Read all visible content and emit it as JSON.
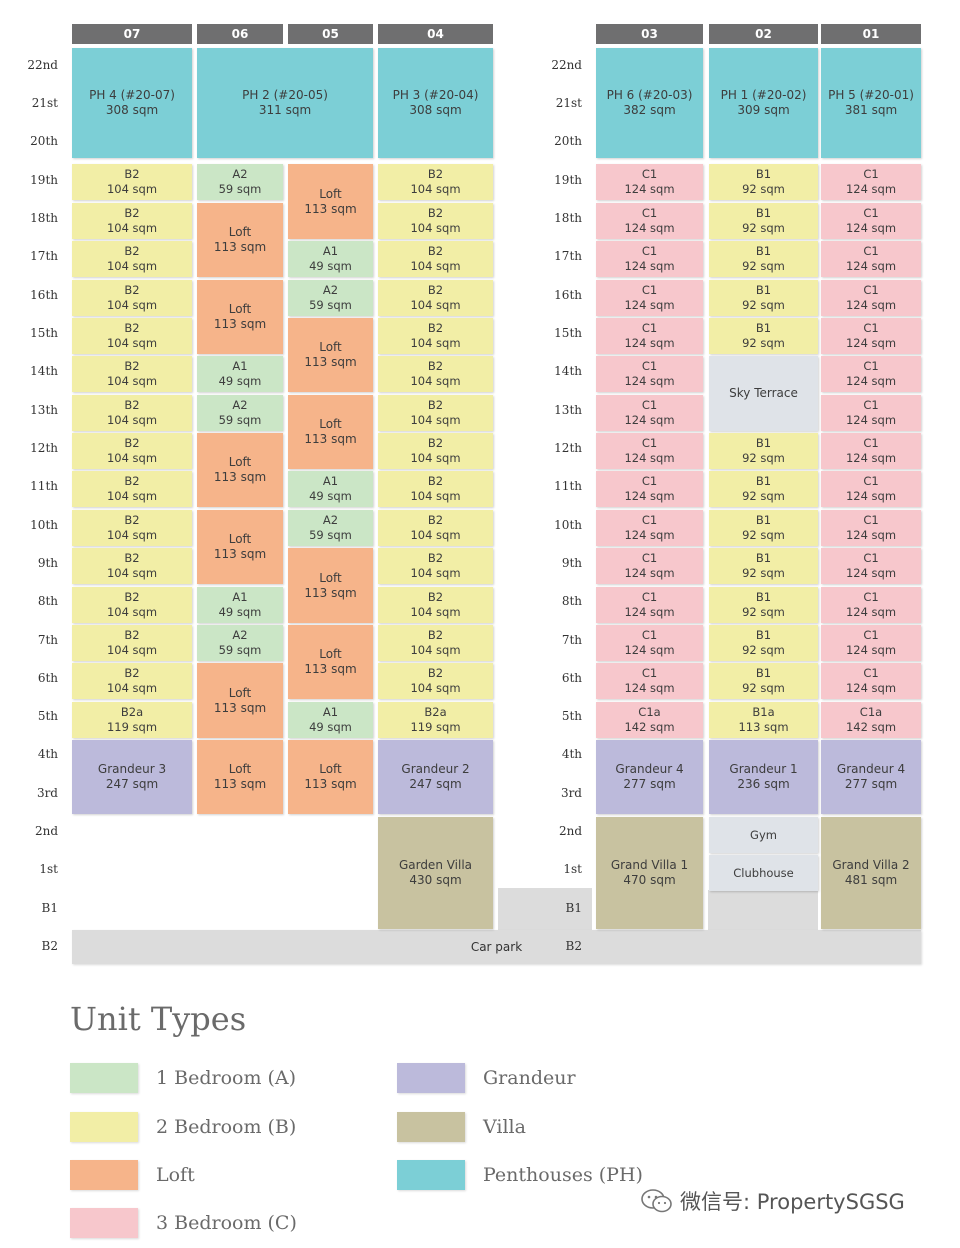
{
  "colors": {
    "A": "#cbe6c6",
    "B": "#f2eea6",
    "Loft": "#f6b48a",
    "C": "#f7c7cc",
    "G": "#bcbadb",
    "V": "#c8c2a0",
    "PH": "#7ccfd6",
    "S": "#dfe3e8",
    "P": "#dfe2e6"
  },
  "column_labels": [
    "07",
    "06",
    "05",
    "04",
    "03",
    "02",
    "01"
  ],
  "floor_labels": [
    "22nd",
    "21st",
    "20th",
    "19th",
    "18th",
    "17th",
    "16th",
    "15th",
    "14th",
    "13th",
    "12th",
    "11th",
    "10th",
    "9th",
    "8th",
    "7th",
    "6th",
    "5th",
    "4th",
    "3rd",
    "2nd",
    "1st",
    "B1",
    "B2"
  ],
  "units": [
    {
      "col": 0,
      "from": 20,
      "to": 22,
      "type": "PH",
      "name": "PH 4 (#20-07)",
      "area": "308 sqm"
    },
    {
      "col": 1,
      "from": 20,
      "to": 22,
      "type": "PH",
      "name": "PH 2 (#20-05)",
      "area": "311 sqm",
      "span": 2
    },
    {
      "col": 3,
      "from": 20,
      "to": 22,
      "type": "PH",
      "name": "PH 3 (#20-04)",
      "area": "308 sqm"
    },
    {
      "col": 4,
      "from": 20,
      "to": 22,
      "type": "PH",
      "name": "PH 6 (#20-03)",
      "area": "382 sqm"
    },
    {
      "col": 5,
      "from": 20,
      "to": 22,
      "type": "PH",
      "name": "PH 1 (#20-02)",
      "area": "309 sqm"
    },
    {
      "col": 6,
      "from": 20,
      "to": 22,
      "type": "PH",
      "name": "PH 5 (#20-01)",
      "area": "381 sqm"
    },
    {
      "col": 0,
      "from": 19,
      "to": 19,
      "type": "B",
      "name": "B2",
      "area": "104 sqm"
    },
    {
      "col": 0,
      "from": 18,
      "to": 18,
      "type": "B",
      "name": "B2",
      "area": "104 sqm"
    },
    {
      "col": 0,
      "from": 17,
      "to": 17,
      "type": "B",
      "name": "B2",
      "area": "104 sqm"
    },
    {
      "col": 0,
      "from": 16,
      "to": 16,
      "type": "B",
      "name": "B2",
      "area": "104 sqm"
    },
    {
      "col": 0,
      "from": 15,
      "to": 15,
      "type": "B",
      "name": "B2",
      "area": "104 sqm"
    },
    {
      "col": 0,
      "from": 14,
      "to": 14,
      "type": "B",
      "name": "B2",
      "area": "104 sqm"
    },
    {
      "col": 0,
      "from": 13,
      "to": 13,
      "type": "B",
      "name": "B2",
      "area": "104 sqm"
    },
    {
      "col": 0,
      "from": 12,
      "to": 12,
      "type": "B",
      "name": "B2",
      "area": "104 sqm"
    },
    {
      "col": 0,
      "from": 11,
      "to": 11,
      "type": "B",
      "name": "B2",
      "area": "104 sqm"
    },
    {
      "col": 0,
      "from": 10,
      "to": 10,
      "type": "B",
      "name": "B2",
      "area": "104 sqm"
    },
    {
      "col": 0,
      "from": 9,
      "to": 9,
      "type": "B",
      "name": "B2",
      "area": "104 sqm"
    },
    {
      "col": 0,
      "from": 8,
      "to": 8,
      "type": "B",
      "name": "B2",
      "area": "104 sqm"
    },
    {
      "col": 0,
      "from": 7,
      "to": 7,
      "type": "B",
      "name": "B2",
      "area": "104 sqm"
    },
    {
      "col": 0,
      "from": 6,
      "to": 6,
      "type": "B",
      "name": "B2",
      "area": "104 sqm"
    },
    {
      "col": 0,
      "from": 5,
      "to": 5,
      "type": "B",
      "name": "B2a",
      "area": "119 sqm"
    },
    {
      "col": 0,
      "from": 3,
      "to": 4,
      "type": "G",
      "name": "Grandeur 3",
      "area": "247 sqm"
    },
    {
      "col": 1,
      "from": 19,
      "to": 19,
      "type": "A",
      "name": "A2",
      "area": "59 sqm"
    },
    {
      "col": 1,
      "from": 17,
      "to": 18,
      "type": "Loft",
      "name": "Loft",
      "area": "113 sqm"
    },
    {
      "col": 1,
      "from": 15,
      "to": 16,
      "type": "Loft",
      "name": "Loft",
      "area": "113 sqm"
    },
    {
      "col": 1,
      "from": 14,
      "to": 14,
      "type": "A",
      "name": "A1",
      "area": "49 sqm"
    },
    {
      "col": 1,
      "from": 13,
      "to": 13,
      "type": "A",
      "name": "A2",
      "area": "59 sqm"
    },
    {
      "col": 1,
      "from": 11,
      "to": 12,
      "type": "Loft",
      "name": "Loft",
      "area": "113 sqm"
    },
    {
      "col": 1,
      "from": 9,
      "to": 10,
      "type": "Loft",
      "name": "Loft",
      "area": "113 sqm"
    },
    {
      "col": 1,
      "from": 8,
      "to": 8,
      "type": "A",
      "name": "A1",
      "area": "49 sqm"
    },
    {
      "col": 1,
      "from": 7,
      "to": 7,
      "type": "A",
      "name": "A2",
      "area": "59 sqm"
    },
    {
      "col": 1,
      "from": 5,
      "to": 6,
      "type": "Loft",
      "name": "Loft",
      "area": "113 sqm"
    },
    {
      "col": 1,
      "from": 3,
      "to": 4,
      "type": "Loft",
      "name": "Loft",
      "area": "113 sqm"
    },
    {
      "col": 2,
      "from": 18,
      "to": 19,
      "type": "Loft",
      "name": "Loft",
      "area": "113 sqm"
    },
    {
      "col": 2,
      "from": 17,
      "to": 17,
      "type": "A",
      "name": "A1",
      "area": "49 sqm"
    },
    {
      "col": 2,
      "from": 16,
      "to": 16,
      "type": "A",
      "name": "A2",
      "area": "59 sqm"
    },
    {
      "col": 2,
      "from": 14,
      "to": 15,
      "type": "Loft",
      "name": "Loft",
      "area": "113 sqm"
    },
    {
      "col": 2,
      "from": 12,
      "to": 13,
      "type": "Loft",
      "name": "Loft",
      "area": "113 sqm"
    },
    {
      "col": 2,
      "from": 11,
      "to": 11,
      "type": "A",
      "name": "A1",
      "area": "49 sqm"
    },
    {
      "col": 2,
      "from": 10,
      "to": 10,
      "type": "A",
      "name": "A2",
      "area": "59 sqm"
    },
    {
      "col": 2,
      "from": 8,
      "to": 9,
      "type": "Loft",
      "name": "Loft",
      "area": "113 sqm"
    },
    {
      "col": 2,
      "from": 6,
      "to": 7,
      "type": "Loft",
      "name": "Loft",
      "area": "113 sqm"
    },
    {
      "col": 2,
      "from": 5,
      "to": 5,
      "type": "A",
      "name": "A1",
      "area": "49 sqm"
    },
    {
      "col": 2,
      "from": 3,
      "to": 4,
      "type": "Loft",
      "name": "Loft",
      "area": "113 sqm"
    },
    {
      "col": 3,
      "from": 19,
      "to": 19,
      "type": "B",
      "name": "B2",
      "area": "104 sqm"
    },
    {
      "col": 3,
      "from": 18,
      "to": 18,
      "type": "B",
      "name": "B2",
      "area": "104 sqm"
    },
    {
      "col": 3,
      "from": 17,
      "to": 17,
      "type": "B",
      "name": "B2",
      "area": "104 sqm"
    },
    {
      "col": 3,
      "from": 16,
      "to": 16,
      "type": "B",
      "name": "B2",
      "area": "104 sqm"
    },
    {
      "col": 3,
      "from": 15,
      "to": 15,
      "type": "B",
      "name": "B2",
      "area": "104 sqm"
    },
    {
      "col": 3,
      "from": 14,
      "to": 14,
      "type": "B",
      "name": "B2",
      "area": "104 sqm"
    },
    {
      "col": 3,
      "from": 13,
      "to": 13,
      "type": "B",
      "name": "B2",
      "area": "104 sqm"
    },
    {
      "col": 3,
      "from": 12,
      "to": 12,
      "type": "B",
      "name": "B2",
      "area": "104 sqm"
    },
    {
      "col": 3,
      "from": 11,
      "to": 11,
      "type": "B",
      "name": "B2",
      "area": "104 sqm"
    },
    {
      "col": 3,
      "from": 10,
      "to": 10,
      "type": "B",
      "name": "B2",
      "area": "104 sqm"
    },
    {
      "col": 3,
      "from": 9,
      "to": 9,
      "type": "B",
      "name": "B2",
      "area": "104 sqm"
    },
    {
      "col": 3,
      "from": 8,
      "to": 8,
      "type": "B",
      "name": "B2",
      "area": "104 sqm"
    },
    {
      "col": 3,
      "from": 7,
      "to": 7,
      "type": "B",
      "name": "B2",
      "area": "104 sqm"
    },
    {
      "col": 3,
      "from": 6,
      "to": 6,
      "type": "B",
      "name": "B2",
      "area": "104 sqm"
    },
    {
      "col": 3,
      "from": 5,
      "to": 5,
      "type": "B",
      "name": "B2a",
      "area": "119 sqm"
    },
    {
      "col": 3,
      "from": 3,
      "to": 4,
      "type": "G",
      "name": "Grandeur 2",
      "area": "247 sqm"
    },
    {
      "col": 3,
      "from": 0,
      "to": 2,
      "type": "V",
      "name": "Garden Villa",
      "area": "430 sqm"
    },
    {
      "col": 4,
      "from": 19,
      "to": 19,
      "type": "C",
      "name": "C1",
      "area": "124 sqm"
    },
    {
      "col": 4,
      "from": 18,
      "to": 18,
      "type": "C",
      "name": "C1",
      "area": "124 sqm"
    },
    {
      "col": 4,
      "from": 17,
      "to": 17,
      "type": "C",
      "name": "C1",
      "area": "124 sqm"
    },
    {
      "col": 4,
      "from": 16,
      "to": 16,
      "type": "C",
      "name": "C1",
      "area": "124 sqm"
    },
    {
      "col": 4,
      "from": 15,
      "to": 15,
      "type": "C",
      "name": "C1",
      "area": "124 sqm"
    },
    {
      "col": 4,
      "from": 14,
      "to": 14,
      "type": "C",
      "name": "C1",
      "area": "124 sqm"
    },
    {
      "col": 4,
      "from": 13,
      "to": 13,
      "type": "C",
      "name": "C1",
      "area": "124 sqm"
    },
    {
      "col": 4,
      "from": 12,
      "to": 12,
      "type": "C",
      "name": "C1",
      "area": "124 sqm"
    },
    {
      "col": 4,
      "from": 11,
      "to": 11,
      "type": "C",
      "name": "C1",
      "area": "124 sqm"
    },
    {
      "col": 4,
      "from": 10,
      "to": 10,
      "type": "C",
      "name": "C1",
      "area": "124 sqm"
    },
    {
      "col": 4,
      "from": 9,
      "to": 9,
      "type": "C",
      "name": "C1",
      "area": "124 sqm"
    },
    {
      "col": 4,
      "from": 8,
      "to": 8,
      "type": "C",
      "name": "C1",
      "area": "124 sqm"
    },
    {
      "col": 4,
      "from": 7,
      "to": 7,
      "type": "C",
      "name": "C1",
      "area": "124 sqm"
    },
    {
      "col": 4,
      "from": 6,
      "to": 6,
      "type": "C",
      "name": "C1",
      "area": "124 sqm"
    },
    {
      "col": 4,
      "from": 5,
      "to": 5,
      "type": "C",
      "name": "C1a",
      "area": "142 sqm"
    },
    {
      "col": 4,
      "from": 3,
      "to": 4,
      "type": "G",
      "name": "Grandeur 4",
      "area": "277 sqm"
    },
    {
      "col": 4,
      "from": 0,
      "to": 2,
      "type": "V",
      "name": "Grand Villa 1",
      "area": "470 sqm"
    },
    {
      "col": 5,
      "from": 19,
      "to": 19,
      "type": "B",
      "name": "B1",
      "area": "92 sqm"
    },
    {
      "col": 5,
      "from": 18,
      "to": 18,
      "type": "B",
      "name": "B1",
      "area": "92 sqm"
    },
    {
      "col": 5,
      "from": 17,
      "to": 17,
      "type": "B",
      "name": "B1",
      "area": "92 sqm"
    },
    {
      "col": 5,
      "from": 16,
      "to": 16,
      "type": "B",
      "name": "B1",
      "area": "92 sqm"
    },
    {
      "col": 5,
      "from": 15,
      "to": 15,
      "type": "B",
      "name": "B1",
      "area": "92 sqm"
    },
    {
      "col": 5,
      "from": 13,
      "to": 14,
      "type": "S",
      "name": "Sky Terrace",
      "area": ""
    },
    {
      "col": 5,
      "from": 12,
      "to": 12,
      "type": "B",
      "name": "B1",
      "area": "92 sqm"
    },
    {
      "col": 5,
      "from": 11,
      "to": 11,
      "type": "B",
      "name": "B1",
      "area": "92 sqm"
    },
    {
      "col": 5,
      "from": 10,
      "to": 10,
      "type": "B",
      "name": "B1",
      "area": "92 sqm"
    },
    {
      "col": 5,
      "from": 9,
      "to": 9,
      "type": "B",
      "name": "B1",
      "area": "92 sqm"
    },
    {
      "col": 5,
      "from": 8,
      "to": 8,
      "type": "B",
      "name": "B1",
      "area": "92 sqm"
    },
    {
      "col": 5,
      "from": 7,
      "to": 7,
      "type": "B",
      "name": "B1",
      "area": "92 sqm"
    },
    {
      "col": 5,
      "from": 6,
      "to": 6,
      "type": "B",
      "name": "B1",
      "area": "92 sqm"
    },
    {
      "col": 5,
      "from": 5,
      "to": 5,
      "type": "B",
      "name": "B1a",
      "area": "113 sqm"
    },
    {
      "col": 5,
      "from": 3,
      "to": 4,
      "type": "G",
      "name": "Grandeur 1",
      "area": "236 sqm"
    },
    {
      "col": 5,
      "from": 2,
      "to": 2,
      "type": "S",
      "name": "Gym",
      "area": ""
    },
    {
      "col": 5,
      "from": 1,
      "to": 1,
      "type": "S",
      "name": "Clubhouse",
      "area": ""
    },
    {
      "col": 6,
      "from": 19,
      "to": 19,
      "type": "C",
      "name": "C1",
      "area": "124 sqm"
    },
    {
      "col": 6,
      "from": 18,
      "to": 18,
      "type": "C",
      "name": "C1",
      "area": "124 sqm"
    },
    {
      "col": 6,
      "from": 17,
      "to": 17,
      "type": "C",
      "name": "C1",
      "area": "124 sqm"
    },
    {
      "col": 6,
      "from": 16,
      "to": 16,
      "type": "C",
      "name": "C1",
      "area": "124 sqm"
    },
    {
      "col": 6,
      "from": 15,
      "to": 15,
      "type": "C",
      "name": "C1",
      "area": "124 sqm"
    },
    {
      "col": 6,
      "from": 14,
      "to": 14,
      "type": "C",
      "name": "C1",
      "area": "124 sqm"
    },
    {
      "col": 6,
      "from": 13,
      "to": 13,
      "type": "C",
      "name": "C1",
      "area": "124 sqm"
    },
    {
      "col": 6,
      "from": 12,
      "to": 12,
      "type": "C",
      "name": "C1",
      "area": "124 sqm"
    },
    {
      "col": 6,
      "from": 11,
      "to": 11,
      "type": "C",
      "name": "C1",
      "area": "124 sqm"
    },
    {
      "col": 6,
      "from": 10,
      "to": 10,
      "type": "C",
      "name": "C1",
      "area": "124 sqm"
    },
    {
      "col": 6,
      "from": 9,
      "to": 9,
      "type": "C",
      "name": "C1",
      "area": "124 sqm"
    },
    {
      "col": 6,
      "from": 8,
      "to": 8,
      "type": "C",
      "name": "C1",
      "area": "124 sqm"
    },
    {
      "col": 6,
      "from": 7,
      "to": 7,
      "type": "C",
      "name": "C1",
      "area": "124 sqm"
    },
    {
      "col": 6,
      "from": 6,
      "to": 6,
      "type": "C",
      "name": "C1",
      "area": "124 sqm"
    },
    {
      "col": 6,
      "from": 5,
      "to": 5,
      "type": "C",
      "name": "C1a",
      "area": "142 sqm"
    },
    {
      "col": 6,
      "from": 3,
      "to": 4,
      "type": "G",
      "name": "Grandeur 4",
      "area": "277 sqm"
    },
    {
      "col": 6,
      "from": 0,
      "to": 2,
      "type": "V",
      "name": "Grand Villa 2",
      "area": "481 sqm"
    }
  ],
  "carpark_label": "Car park",
  "legend": {
    "title": "Unit Types",
    "items": [
      {
        "label": "1 Bedroom (A)",
        "type": "A"
      },
      {
        "label": "2 Bedroom (B)",
        "type": "B"
      },
      {
        "label": "Loft",
        "type": "Loft"
      },
      {
        "label": "3 Bedroom (C)",
        "type": "C"
      },
      {
        "label": "Grandeur",
        "type": "G"
      },
      {
        "label": "Villa",
        "type": "V"
      },
      {
        "label": "Penthouses (PH)",
        "type": "PH"
      }
    ]
  },
  "watermark": "微信号: PropertySGSG"
}
